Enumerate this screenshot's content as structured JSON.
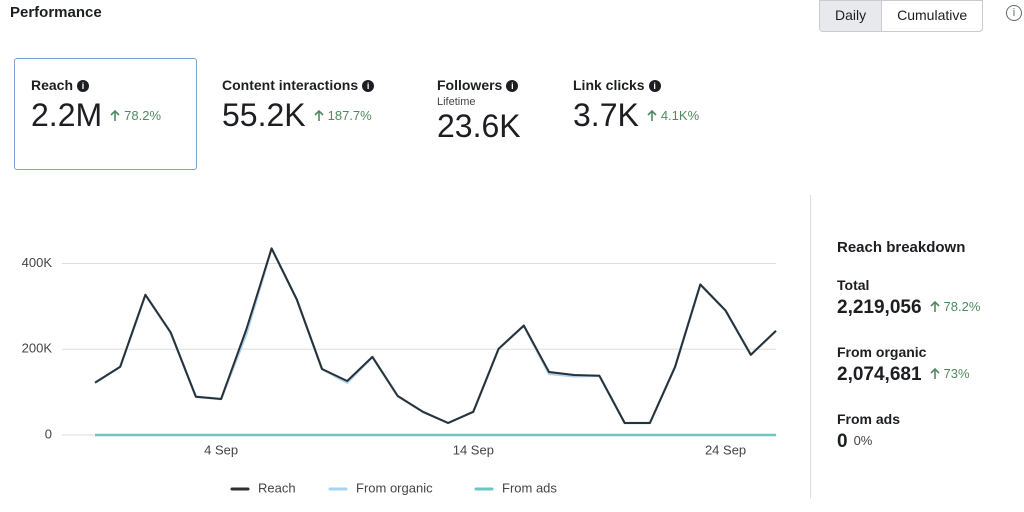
{
  "header": {
    "title": "Performance",
    "tabs": [
      "Daily",
      "Cumulative"
    ]
  },
  "metrics": [
    {
      "label": "Reach",
      "value": "2.2M",
      "change": "78.2%"
    },
    {
      "label": "Content interactions",
      "value": "55.2K",
      "change": "187.7%"
    },
    {
      "label": "Followers",
      "sublabel": "Lifetime",
      "value": "23.6K"
    },
    {
      "label": "Link clicks",
      "value": "3.7K",
      "change": "4.1K%"
    }
  ],
  "chart_data": {
    "type": "line",
    "categories": [
      null,
      null,
      null,
      null,
      null,
      "4 Sep",
      null,
      null,
      null,
      null,
      null,
      null,
      null,
      null,
      null,
      "14 Sep",
      null,
      null,
      null,
      null,
      null,
      null,
      null,
      null,
      null,
      "24 Sep",
      null,
      null
    ],
    "series": [
      {
        "name": "Reach",
        "color": "#2b3035",
        "values": [
          122000,
          159000,
          327000,
          239000,
          89000,
          84000,
          246000,
          435000,
          316000,
          154000,
          126000,
          182000,
          91000,
          54000,
          28000,
          54000,
          201000,
          255000,
          147000,
          140000,
          138000,
          28000,
          28000,
          159000,
          351000,
          290000,
          187000,
          243000
        ]
      },
      {
        "name": "From organic",
        "color": "#a8d4f0",
        "values": [
          122000,
          159000,
          327000,
          239000,
          89000,
          84000,
          235000,
          435000,
          316000,
          154000,
          122000,
          182000,
          91000,
          54000,
          28000,
          54000,
          201000,
          255000,
          143000,
          137000,
          138000,
          28000,
          28000,
          159000,
          351000,
          290000,
          187000,
          243000
        ]
      },
      {
        "name": "From ads",
        "color": "#6cc6c6",
        "values": [
          0,
          0,
          0,
          0,
          0,
          0,
          0,
          0,
          0,
          0,
          0,
          0,
          0,
          0,
          0,
          0,
          0,
          0,
          0,
          0,
          0,
          0,
          0,
          0,
          0,
          0,
          0,
          0
        ]
      }
    ],
    "ylim": [
      0,
      450000
    ],
    "yticks": [
      0,
      {
        "value": 200000,
        "label": "200K"
      },
      {
        "value": 400000,
        "label": "400K"
      }
    ],
    "grid": true,
    "legend": "bottom"
  },
  "breakdown": {
    "title": "Reach breakdown",
    "items": [
      {
        "label": "Total",
        "value": "2,219,056",
        "change": "78.2%"
      },
      {
        "label": "From organic",
        "value": "2,074,681",
        "change": "73%"
      },
      {
        "label": "From ads",
        "value": "0",
        "change": "0%"
      }
    ]
  }
}
